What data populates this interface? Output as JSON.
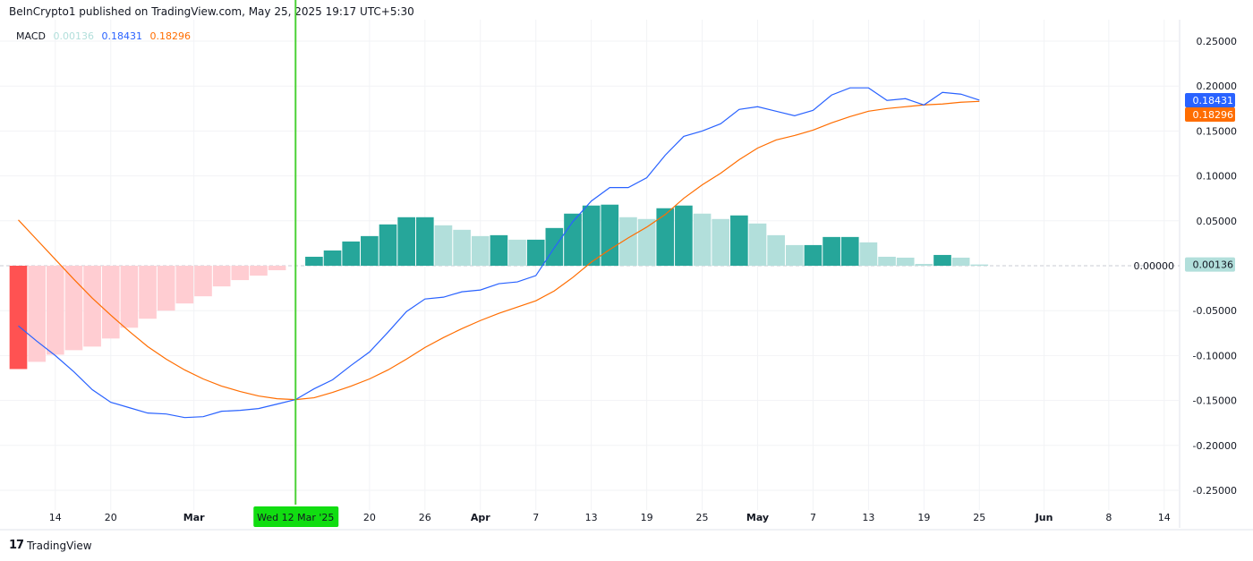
{
  "header": {
    "published": "BeInCrypto1 published on TradingView.com, May 25, 2025 19:17 UTC+5:30"
  },
  "legend": {
    "name": "MACD",
    "histogram_value": "0.00136",
    "macd_value": "0.18431",
    "signal_value": "0.18296"
  },
  "footer": {
    "brand": "TradingView",
    "logo_icon": "tradingview-logo-icon"
  },
  "colors": {
    "macd": "#2962ff",
    "signal": "#ff6d00",
    "hist_pos_up": "#26a69a",
    "hist_pos_down": "#b2dfdb",
    "hist_neg_down": "#ffcdd2",
    "crosshair": "#4cd137",
    "crosshair_tag": "#11dd11"
  },
  "chart_data": {
    "type": "line+bar",
    "indicator": "MACD",
    "interval_days": 2,
    "start_date": "2025-02-10",
    "ylim": [
      -0.27,
      0.27
    ],
    "y_ticks": [
      "0.25000",
      "0.20000",
      "0.15000",
      "0.10000",
      "0.05000",
      "0.00000",
      "-0.05000",
      "-0.10000",
      "-0.15000",
      "-0.20000",
      "-0.25000"
    ],
    "y_tick_values": [
      0.25,
      0.2,
      0.15,
      0.1,
      0.05,
      0,
      -0.05,
      -0.1,
      -0.15,
      -0.2,
      -0.25
    ],
    "x_ticks": [
      {
        "label": "14",
        "date": "2025-02-14",
        "bold": false
      },
      {
        "label": "20",
        "date": "2025-02-20",
        "bold": false
      },
      {
        "label": "Mar",
        "date": "2025-03-01",
        "bold": true
      },
      {
        "label": "20",
        "date": "2025-03-20",
        "bold": false
      },
      {
        "label": "26",
        "date": "2025-03-26",
        "bold": false
      },
      {
        "label": "Apr",
        "date": "2025-04-01",
        "bold": true
      },
      {
        "label": "7",
        "date": "2025-04-07",
        "bold": false
      },
      {
        "label": "13",
        "date": "2025-04-13",
        "bold": false
      },
      {
        "label": "19",
        "date": "2025-04-19",
        "bold": false
      },
      {
        "label": "25",
        "date": "2025-04-25",
        "bold": false
      },
      {
        "label": "May",
        "date": "2025-05-01",
        "bold": true
      },
      {
        "label": "7",
        "date": "2025-05-07",
        "bold": false
      },
      {
        "label": "13",
        "date": "2025-05-13",
        "bold": false
      },
      {
        "label": "19",
        "date": "2025-05-19",
        "bold": false
      },
      {
        "label": "25",
        "date": "2025-05-25",
        "bold": false
      },
      {
        "label": "Jun",
        "date": "2025-06-01",
        "bold": true
      },
      {
        "label": "8",
        "date": "2025-06-08",
        "bold": false
      },
      {
        "label": "14",
        "date": "2025-06-14",
        "bold": false
      }
    ],
    "crosshair": {
      "label": "Wed 12 Mar '25",
      "date": "2025-03-12"
    },
    "series": [
      {
        "name": "MACD",
        "type": "line",
        "values": [
          -0.067,
          -0.084,
          -0.1,
          -0.118,
          -0.138,
          -0.152,
          -0.158,
          -0.164,
          -0.165,
          -0.169,
          -0.168,
          -0.162,
          -0.161,
          -0.159,
          -0.154,
          -0.149,
          -0.137,
          -0.127,
          -0.111,
          -0.096,
          -0.074,
          -0.051,
          -0.037,
          -0.035,
          -0.029,
          -0.027,
          -0.02,
          -0.018,
          -0.011,
          0.02,
          0.049,
          0.072,
          0.087,
          0.087,
          0.098,
          0.123,
          0.144,
          0.15,
          0.158,
          0.174,
          0.177,
          0.172,
          0.167,
          0.173,
          0.19,
          0.198,
          0.198,
          0.184,
          0.186,
          0.179,
          0.193,
          0.191,
          0.18431
        ]
      },
      {
        "name": "Signal",
        "type": "line",
        "values": [
          0.051,
          0.029,
          0.007,
          -0.015,
          -0.036,
          -0.055,
          -0.073,
          -0.09,
          -0.104,
          -0.116,
          -0.126,
          -0.134,
          -0.14,
          -0.145,
          -0.148,
          -0.149,
          -0.147,
          -0.141,
          -0.134,
          -0.126,
          -0.116,
          -0.104,
          -0.091,
          -0.08,
          -0.07,
          -0.061,
          -0.053,
          -0.046,
          -0.039,
          -0.028,
          -0.013,
          0.004,
          0.018,
          0.031,
          0.043,
          0.057,
          0.075,
          0.09,
          0.103,
          0.118,
          0.131,
          0.14,
          0.145,
          0.151,
          0.159,
          0.166,
          0.172,
          0.175,
          0.177,
          0.179,
          0.18,
          0.182,
          0.18296
        ]
      },
      {
        "name": "Histogram",
        "type": "bar",
        "values": [
          -0.115,
          -0.107,
          -0.099,
          -0.094,
          -0.09,
          -0.081,
          -0.069,
          -0.059,
          -0.05,
          -0.042,
          -0.034,
          -0.023,
          -0.016,
          -0.011,
          -0.005,
          0,
          0.01,
          0.017,
          0.027,
          0.033,
          0.046,
          0.054,
          0.054,
          0.045,
          0.04,
          0.033,
          0.034,
          0.029,
          0.029,
          0.042,
          0.058,
          0.067,
          0.068,
          0.054,
          0.052,
          0.064,
          0.067,
          0.058,
          0.052,
          0.056,
          0.047,
          0.034,
          0.023,
          0.023,
          0.032,
          0.032,
          0.026,
          0.01,
          0.009,
          0.002,
          0.012,
          0.009,
          0.00136
        ]
      }
    ],
    "last_value_tags": [
      "0.18431",
      "0.18296",
      "0.00136"
    ],
    "grid": true
  }
}
